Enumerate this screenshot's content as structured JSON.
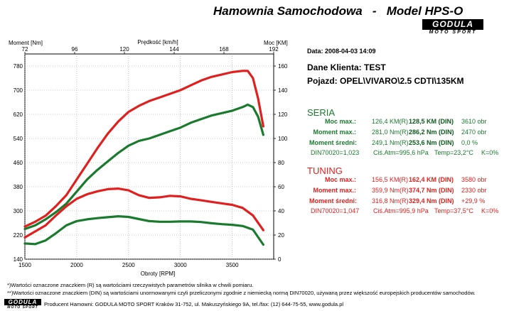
{
  "header": {
    "title": "Hamownia Samochodowa   -   Model HPS-O",
    "logo_text": "GODULA",
    "logo_sub": "MOTO SPORT"
  },
  "info": {
    "date": "Data: 2008-04-03  14:09",
    "client": "Dane Klienta: TEST",
    "vehicle": "Pojazd: OPEL\\VIVARO\\2.5 CDTI\\135KM"
  },
  "seria": {
    "title": "SERIA",
    "rows": [
      {
        "label": "Moc max.:",
        "v1": "126,4 KM(R)",
        "v2": "128,5 KM (DIN)",
        "v3": "3610 obr"
      },
      {
        "label": "Moment max.:",
        "v1": "281,0 Nm(R)",
        "v2": "286,2 Nm (DIN)",
        "v3": "2470 obr"
      },
      {
        "label": "Moment średni:",
        "v1": "249,1 Nm(R)",
        "v2": "253,6 Nm (DIN)",
        "v3": "0,0 %"
      }
    ],
    "din": {
      "d1": "DIN70020=1,023",
      "d2": "Ciś.Atm=995,6 hPa",
      "d3": "Temp=23,2°C",
      "d4": "K=0%"
    }
  },
  "tuning": {
    "title": "TUNING",
    "rows": [
      {
        "label": "Moc max.:",
        "v1": "156,5 KM(R)",
        "v2": "162,4 KM (DIN)",
        "v3": "3580 obr"
      },
      {
        "label": "Moment max.:",
        "v1": "359,9 Nm(R)",
        "v2": "374,7 Nm (DIN)",
        "v3": "2330 obr"
      },
      {
        "label": "Moment średni:",
        "v1": "316,8 Nm(R)",
        "v2": "329,4 Nm (DIN)",
        "v3": "+29,9 %"
      }
    ],
    "din": {
      "d1": "DIN70020=1,047",
      "d2": "Ciś.Atm=995,9 hPa",
      "d3": "Temp=37,5°C",
      "d4": "K=0%"
    }
  },
  "footer": {
    "note1": "*)Wartości oznaczone znaczkiem (R) są wartościami rzeczywistych parametrów silnika w chwili pomiaru.",
    "note2": "**)Wartości oznaczone znaczkiem (DIN) są wartościami unormowanymi czyli przeliczonymi zgodnie z niemiecką normą DIN70020, używaną przez większość europejskich producentów samochodów.",
    "producer": "Producent Hamowni: GODULA MOTO SPORT Kraków 31-752, ul. Makuszyńskiego 9A, tel./fax: (12) 644-75-55, www.godula.pl"
  },
  "chart_data": {
    "type": "line",
    "title": "",
    "xlabel": "Obroty [RPM]",
    "x2label": "Prędkość [km/h]",
    "ylabel_left": "Moment [Nm]",
    "ylabel_right": "Moc [KM]",
    "xlim": [
      1500,
      3900
    ],
    "x_ticks": [
      1500,
      2000,
      2500,
      3000,
      3500
    ],
    "x2lim": [
      72,
      192
    ],
    "x2_ticks": [
      72,
      96,
      120,
      144,
      168,
      192
    ],
    "ylim_left": [
      140,
      820
    ],
    "y_left_ticks": [
      140,
      220,
      300,
      380,
      460,
      540,
      620,
      700,
      780
    ],
    "ylim_right": [
      0,
      170
    ],
    "y_right_ticks": [
      0,
      20,
      40,
      60,
      80,
      100,
      120,
      140,
      160
    ],
    "grid": true,
    "series": [
      {
        "color": "#e0201f",
        "axis": "right",
        "x": [
          1500,
          1600,
          1700,
          1800,
          1900,
          2000,
          2100,
          2200,
          2300,
          2400,
          2500,
          2600,
          2700,
          2800,
          2900,
          3000,
          3100,
          3200,
          3300,
          3400,
          3500,
          3600,
          3650,
          3700,
          3750,
          3800
        ],
        "y": [
          27,
          31,
          36,
          44,
          53,
          66,
          79,
          92,
          104,
          114,
          122,
          127,
          131,
          134,
          137,
          140,
          144,
          148,
          151,
          153,
          155,
          156,
          156,
          150,
          133,
          110
        ]
      },
      {
        "color": "#1a7a2e",
        "axis": "right",
        "x": [
          1500,
          1600,
          1700,
          1800,
          1900,
          2000,
          2100,
          2200,
          2300,
          2400,
          2500,
          2600,
          2700,
          2800,
          2900,
          3000,
          3100,
          3200,
          3300,
          3400,
          3500,
          3600,
          3650,
          3700,
          3750,
          3800
        ],
        "y": [
          25,
          28,
          33,
          39,
          46,
          56,
          66,
          74,
          81,
          88,
          94,
          98,
          100,
          103,
          106,
          109,
          113,
          116,
          119,
          121,
          123,
          126,
          128,
          126,
          118,
          103
        ]
      },
      {
        "color": "#e0201f",
        "axis": "left",
        "x": [
          1500,
          1600,
          1700,
          1800,
          1900,
          2000,
          2100,
          2200,
          2300,
          2400,
          2500,
          2600,
          2700,
          2800,
          2900,
          3000,
          3100,
          3200,
          3300,
          3400,
          3500,
          3600,
          3700,
          3800
        ],
        "y": [
          212,
          232,
          252,
          285,
          315,
          340,
          355,
          365,
          372,
          374,
          368,
          352,
          343,
          345,
          350,
          348,
          340,
          335,
          330,
          325,
          320,
          310,
          285,
          236
        ]
      },
      {
        "color": "#1a7a2e",
        "axis": "left",
        "x": [
          1500,
          1600,
          1700,
          1800,
          1900,
          2000,
          2100,
          2200,
          2300,
          2400,
          2500,
          2600,
          2700,
          2800,
          2900,
          3000,
          3100,
          3200,
          3300,
          3400,
          3500,
          3600,
          3700,
          3800
        ],
        "y": [
          192,
          190,
          202,
          226,
          252,
          266,
          272,
          276,
          279,
          282,
          280,
          273,
          266,
          264,
          264,
          265,
          265,
          263,
          259,
          256,
          254,
          250,
          238,
          188
        ]
      }
    ]
  }
}
